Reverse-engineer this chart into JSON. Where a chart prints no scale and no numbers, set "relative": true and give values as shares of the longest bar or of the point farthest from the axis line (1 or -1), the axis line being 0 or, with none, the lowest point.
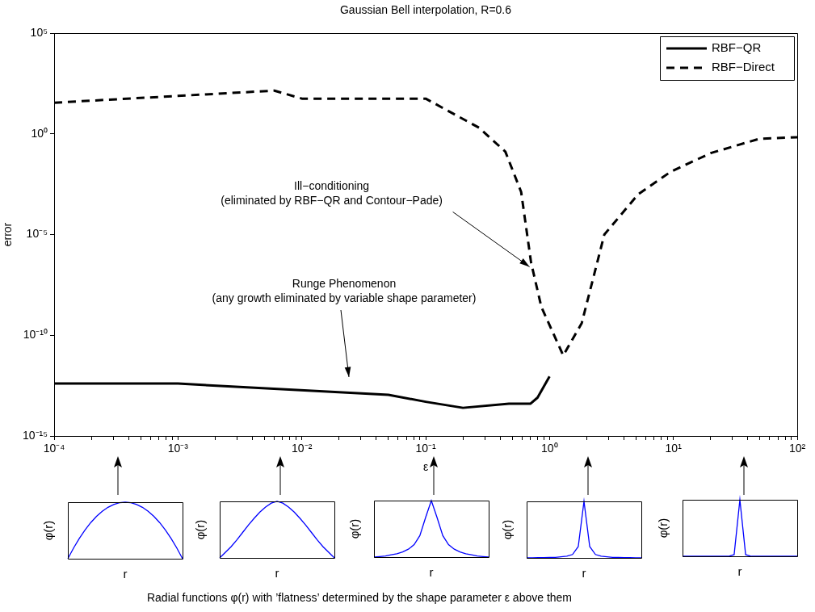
{
  "chart_data": [
    {
      "type": "line",
      "title": "Gaussian Bell interpolation, R=0.6",
      "xlabel": "ε",
      "ylabel": "error",
      "log": "xy",
      "legend": "top right",
      "xlim": [
        0.0001,
        100
      ],
      "ylim": [
        1e-15,
        100000
      ],
      "xticks": [
        {
          "value": 0.0001,
          "label": "10⁻⁴"
        },
        {
          "value": 0.0002,
          "label": null
        },
        {
          "value": 0.0003,
          "label": null
        },
        {
          "value": 0.0004,
          "label": null
        },
        {
          "value": 0.0005,
          "label": null
        },
        {
          "value": 0.0006,
          "label": null
        },
        {
          "value": 0.0007,
          "label": null
        },
        {
          "value": 0.0008,
          "label": null
        },
        {
          "value": 0.0009,
          "label": null
        },
        {
          "value": 0.001,
          "label": "10⁻³"
        },
        {
          "value": 0.002,
          "label": null
        },
        {
          "value": 0.003,
          "label": null
        },
        {
          "value": 0.004,
          "label": null
        },
        {
          "value": 0.005,
          "label": null
        },
        {
          "value": 0.006,
          "label": null
        },
        {
          "value": 0.007,
          "label": null
        },
        {
          "value": 0.008,
          "label": null
        },
        {
          "value": 0.009,
          "label": null
        },
        {
          "value": 0.01,
          "label": "10⁻²"
        },
        {
          "value": 0.02,
          "label": null
        },
        {
          "value": 0.03,
          "label": null
        },
        {
          "value": 0.04,
          "label": null
        },
        {
          "value": 0.05,
          "label": null
        },
        {
          "value": 0.06,
          "label": null
        },
        {
          "value": 0.07,
          "label": null
        },
        {
          "value": 0.08,
          "label": null
        },
        {
          "value": 0.09,
          "label": null
        },
        {
          "value": 0.1,
          "label": "10⁻¹"
        },
        {
          "value": 0.2,
          "label": null
        },
        {
          "value": 0.3,
          "label": null
        },
        {
          "value": 0.4,
          "label": null
        },
        {
          "value": 0.5,
          "label": null
        },
        {
          "value": 0.6,
          "label": null
        },
        {
          "value": 0.7,
          "label": null
        },
        {
          "value": 0.8,
          "label": null
        },
        {
          "value": 0.9,
          "label": null
        },
        {
          "value": 1,
          "label": "10⁰"
        },
        {
          "value": 2,
          "label": null
        },
        {
          "value": 3,
          "label": null
        },
        {
          "value": 4,
          "label": null
        },
        {
          "value": 5,
          "label": null
        },
        {
          "value": 6,
          "label": null
        },
        {
          "value": 7,
          "label": null
        },
        {
          "value": 8,
          "label": null
        },
        {
          "value": 9,
          "label": null
        },
        {
          "value": 10,
          "label": "10¹"
        },
        {
          "value": 20,
          "label": null
        },
        {
          "value": 30,
          "label": null
        },
        {
          "value": 40,
          "label": null
        },
        {
          "value": 50,
          "label": null
        },
        {
          "value": 60,
          "label": null
        },
        {
          "value": 70,
          "label": null
        },
        {
          "value": 80,
          "label": null
        },
        {
          "value": 90,
          "label": null
        },
        {
          "value": 100,
          "label": "10²"
        }
      ],
      "yticks": [
        {
          "value": 1e-15,
          "label": "10⁻¹⁵"
        },
        {
          "value": 1e-10,
          "label": "10⁻¹⁰"
        },
        {
          "value": 1e-05,
          "label": "10⁻⁵"
        },
        {
          "value": 1,
          "label": "10⁰"
        },
        {
          "value": 100000,
          "label": "10⁵"
        }
      ],
      "series": [
        {
          "name": "RBF−QR",
          "color": "#000000",
          "line_style": "solid",
          "x": [
            0.0001,
            0.001,
            0.05,
            0.1,
            0.2,
            0.47,
            0.7,
            0.8,
            1
          ],
          "values": [
            4e-13,
            4e-13,
            1.1e-13,
            5e-14,
            2.5e-14,
            4e-14,
            4e-14,
            8e-14,
            9e-13
          ]
        },
        {
          "name": "RBF−Direct",
          "color": "#000000",
          "line_style": "dashed",
          "x": [
            0.0001,
            0.006,
            0.01,
            0.1,
            0.27,
            0.44,
            0.59,
            0.71,
            0.86,
            1.29,
            1.82,
            2.77,
            5.2,
            9.5,
            20,
            49,
            100
          ],
          "values": [
            35,
            140,
            56,
            56,
            2,
            0.13,
            0.0013,
            4e-07,
            2.5e-09,
            1e-11,
            4e-10,
            1e-05,
            0.001,
            0.013,
            0.11,
            0.56,
            0.68
          ]
        }
      ],
      "annotations": [
        {
          "text": "Ill−conditioning\n(eliminated by RBF−QR and Contour−Pade)",
          "x": 0.69,
          "y": 2.5e-07
        },
        "Runge Phenomenon\n(any growth eliminated by variable shape parameter)",
        "Radial functions φ(r) with ’flatness’ determined by the shape parameter ε above them"
      ]
    },
    {
      "type": "line",
      "relative": true,
      "xlabel": "r",
      "ylabel": "φ(r)",
      "color": "#0000ff",
      "categories": [
        null,
        null,
        null,
        null,
        null,
        null,
        null,
        null,
        null,
        null,
        null,
        null,
        null,
        null,
        null,
        null,
        null,
        null,
        null,
        null,
        null
      ],
      "values": [
        0,
        0.19,
        0.36,
        0.51,
        0.64,
        0.75,
        0.84,
        0.91,
        0.96,
        0.99,
        1,
        0.99,
        0.96,
        0.91,
        0.84,
        0.75,
        0.64,
        0.51,
        0.36,
        0.19,
        0
      ]
    },
    {
      "type": "line",
      "relative": true,
      "xlabel": "r",
      "ylabel": "φ(r)",
      "color": "#0000ff",
      "categories": [
        null,
        null,
        null,
        null,
        null,
        null,
        null,
        null,
        null,
        null,
        null,
        null,
        null,
        null,
        null,
        null,
        null,
        null,
        null,
        null,
        null
      ],
      "values": [
        0,
        0.1,
        0.2,
        0.32,
        0.45,
        0.58,
        0.7,
        0.81,
        0.9,
        0.97,
        1,
        0.97,
        0.9,
        0.81,
        0.7,
        0.58,
        0.45,
        0.32,
        0.2,
        0.1,
        0
      ]
    },
    {
      "type": "line",
      "relative": true,
      "xlabel": "r",
      "ylabel": "φ(r)",
      "color": "#0000ff",
      "categories": [
        null,
        null,
        null,
        null,
        null,
        null,
        null,
        null,
        null,
        null,
        null,
        null,
        null,
        null,
        null,
        null,
        null,
        null,
        null,
        null,
        null
      ],
      "values": [
        0,
        0.01,
        0.02,
        0.04,
        0.06,
        0.09,
        0.14,
        0.22,
        0.38,
        0.7,
        1,
        0.7,
        0.38,
        0.22,
        0.14,
        0.09,
        0.06,
        0.04,
        0.02,
        0.01,
        0
      ]
    },
    {
      "type": "line",
      "relative": true,
      "xlabel": "r",
      "ylabel": "φ(r)",
      "color": "#0000ff",
      "categories": [
        null,
        null,
        null,
        null,
        null,
        null,
        null,
        null,
        null,
        null,
        null,
        null,
        null,
        null,
        null,
        null,
        null,
        null,
        null,
        null,
        null
      ],
      "values": [
        0,
        0,
        0.005,
        0.005,
        0.01,
        0.01,
        0.02,
        0.03,
        0.06,
        0.2,
        1,
        0.2,
        0.06,
        0.03,
        0.02,
        0.01,
        0.01,
        0.005,
        0.005,
        0,
        0
      ]
    },
    {
      "type": "line",
      "relative": true,
      "xlabel": "r",
      "ylabel": "φ(r)",
      "color": "#0000ff",
      "categories": [
        null,
        null,
        null,
        null,
        null,
        null,
        null,
        null,
        null,
        null,
        null,
        null,
        null,
        null,
        null,
        null,
        null,
        null,
        null,
        null,
        null
      ],
      "values": [
        0,
        0,
        0,
        0,
        0,
        0,
        0,
        0,
        0,
        0.03,
        1,
        0.03,
        0,
        0,
        0,
        0,
        0,
        0,
        0,
        0,
        0
      ]
    }
  ]
}
